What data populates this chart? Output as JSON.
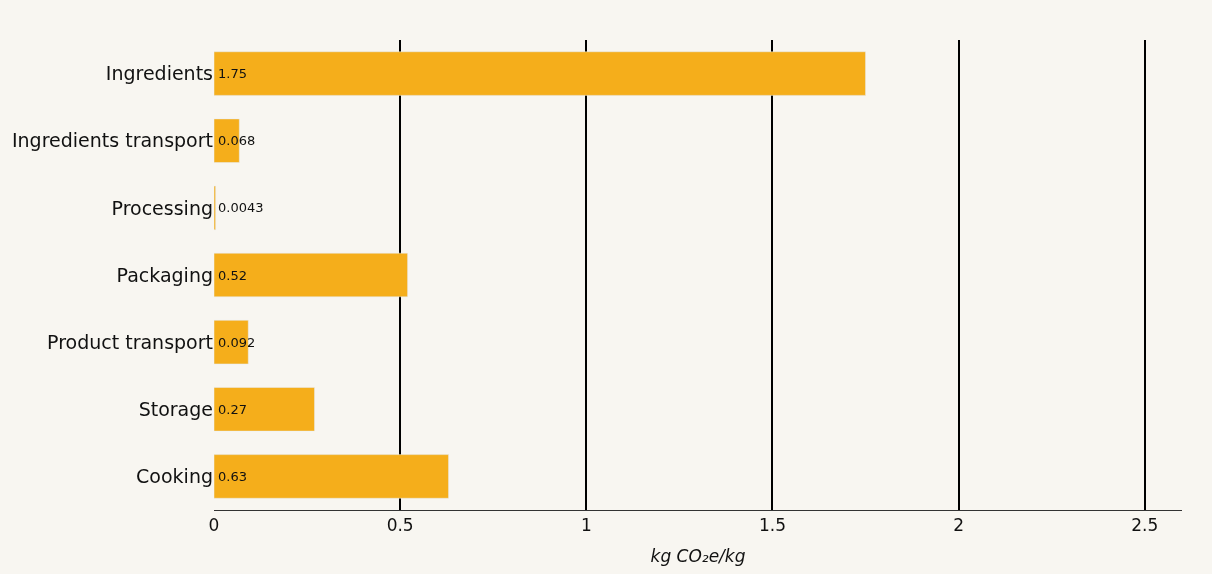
{
  "chart_data": {
    "type": "bar",
    "orientation": "horizontal",
    "categories": [
      "Ingredients",
      "Ingredients transport",
      "Processing",
      "Packaging",
      "Product transport",
      "Storage",
      "Cooking"
    ],
    "values": [
      1.75,
      0.068,
      0.0043,
      0.52,
      0.092,
      0.27,
      0.63
    ],
    "color": "#f5ae1b",
    "xlabel": "kg CO₂e/kg",
    "xlim": [
      0,
      2.6
    ],
    "xticks": [
      0,
      0.5,
      1,
      1.5,
      2,
      2.5
    ],
    "grid": "x",
    "data_labels": true
  }
}
